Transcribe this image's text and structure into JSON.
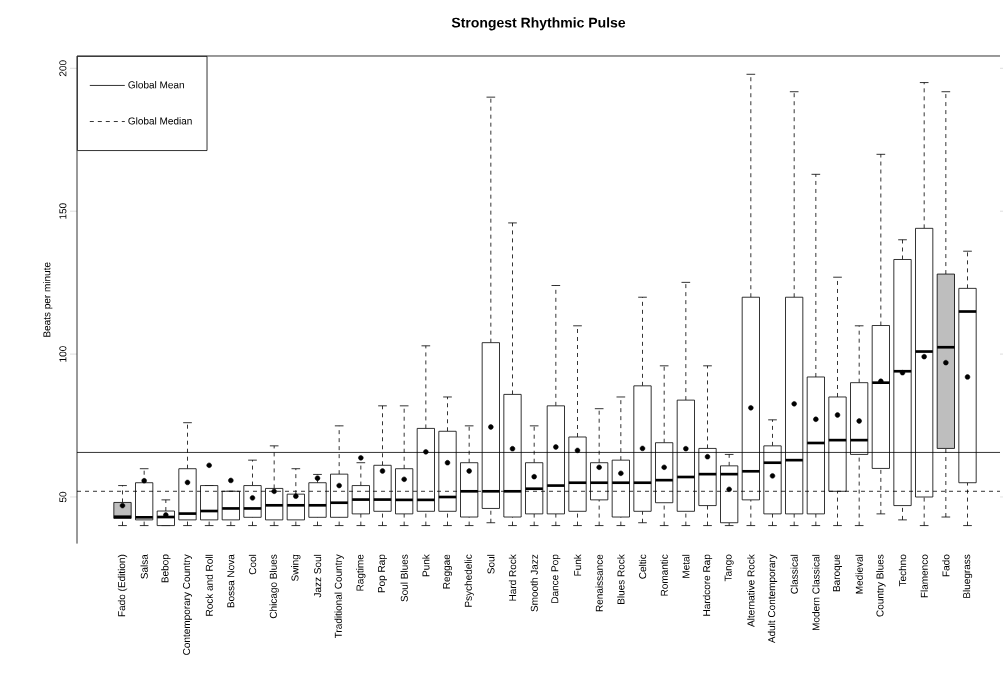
{
  "chart_data": {
    "type": "box",
    "title": "Strongest Rhythmic Pulse",
    "ylabel": "Beats per minute",
    "categories": [
      "Fado (Edition)",
      "Salsa",
      "Bebop",
      "Contemporary Country",
      "Rock and Roll",
      "Bossa Nova",
      "Cool",
      "Chicago Blues",
      "Swing",
      "Jazz Soul",
      "Traditional Country",
      "Ragtime",
      "Pop Rap",
      "Soul Blues",
      "Punk",
      "Reggae",
      "Psychedelic",
      "Soul",
      "Hard Rock",
      "Smooth Jazz",
      "Dance Pop",
      "Funk",
      "Renaissance",
      "Blues Rock",
      "Celtic",
      "Romantic",
      "Metal",
      "Hardcore Rap",
      "Tango",
      "Alternative Rock",
      "Adult Contemporary",
      "Classical",
      "Modern Classical",
      "Baroque",
      "Medieval",
      "Country Blues",
      "Techno",
      "Flamenco",
      "Fado",
      "Bluegrass"
    ],
    "boxes": [
      {
        "low": 40,
        "q1": 42.5,
        "median": 43.1,
        "q3": 48.1,
        "high": 54,
        "mean": 47
      },
      {
        "low": 40,
        "q1": 42,
        "median": 42.9,
        "q3": 55,
        "high": 59.9,
        "mean": 55.7
      },
      {
        "low": 40,
        "q1": 40,
        "median": 43,
        "q3": 45.1,
        "high": 49,
        "mean": 43.7
      },
      {
        "low": 40,
        "q1": 42,
        "median": 44.2,
        "q3": 59.9,
        "high": 76,
        "mean": 55.1
      },
      {
        "low": 40,
        "q1": 42,
        "median": 45.1,
        "q3": 54,
        "high": 54,
        "mean": 61.1
      },
      {
        "low": 40,
        "q1": 42,
        "median": 46,
        "q3": 52,
        "high": 52,
        "mean": 55.8
      },
      {
        "low": 40,
        "q1": 42.9,
        "median": 46,
        "q3": 54,
        "high": 62.9,
        "mean": 49.7
      },
      {
        "low": 40,
        "q1": 42,
        "median": 47.1,
        "q3": 53,
        "high": 67.9,
        "mean": 52
      },
      {
        "low": 40,
        "q1": 42,
        "median": 47.1,
        "q3": 51,
        "high": 59.9,
        "mean": 50.3
      },
      {
        "low": 40,
        "q1": 42.9,
        "median": 47.1,
        "q3": 55,
        "high": 57.9,
        "mean": 56.6
      },
      {
        "low": 40,
        "q1": 42.9,
        "median": 48,
        "q3": 58,
        "high": 74.9,
        "mean": 54
      },
      {
        "low": 40,
        "q1": 44.1,
        "median": 49.1,
        "q3": 54,
        "high": 62,
        "mean": 63.7
      },
      {
        "low": 40,
        "q1": 45,
        "median": 49.1,
        "q3": 61.1,
        "high": 81.9,
        "mean": 59.1
      },
      {
        "low": 40,
        "q1": 44.1,
        "median": 49,
        "q3": 59.9,
        "high": 81.9,
        "mean": 56.2
      },
      {
        "low": 40,
        "q1": 45,
        "median": 49,
        "q3": 74,
        "high": 102.9,
        "mean": 65.8
      },
      {
        "low": 40,
        "q1": 45,
        "median": 50,
        "q3": 73,
        "high": 85,
        "mean": 62
      },
      {
        "low": 40,
        "q1": 43,
        "median": 52,
        "q3": 62,
        "high": 74.9,
        "mean": 59.1
      },
      {
        "low": 41,
        "q1": 46,
        "median": 52,
        "q3": 104,
        "high": 189.9,
        "mean": 74.5
      },
      {
        "low": 40,
        "q1": 43,
        "median": 52,
        "q3": 85.9,
        "high": 145.9,
        "mean": 66.9
      },
      {
        "low": 40,
        "q1": 44.1,
        "median": 52.9,
        "q3": 62,
        "high": 74.9,
        "mean": 57.1
      },
      {
        "low": 40,
        "q1": 44.1,
        "median": 54,
        "q3": 81.9,
        "high": 124,
        "mean": 67.5
      },
      {
        "low": 40,
        "q1": 45,
        "median": 55,
        "q3": 71,
        "high": 109.9,
        "mean": 66.3
      },
      {
        "low": 40,
        "q1": 49,
        "median": 55,
        "q3": 62,
        "high": 80.9,
        "mean": 60.4
      },
      {
        "low": 40,
        "q1": 43,
        "median": 55,
        "q3": 62.9,
        "high": 85,
        "mean": 58.3
      },
      {
        "low": 41,
        "q1": 45,
        "median": 55,
        "q3": 88.9,
        "high": 119.9,
        "mean": 67
      },
      {
        "low": 40,
        "q1": 48,
        "median": 55.9,
        "q3": 69,
        "high": 95.9,
        "mean": 60.4
      },
      {
        "low": 40,
        "q1": 45,
        "median": 57,
        "q3": 83.9,
        "high": 125.1,
        "mean": 66.9
      },
      {
        "low": 40,
        "q1": 47,
        "median": 58,
        "q3": 67,
        "high": 95.9,
        "mean": 64.1
      },
      {
        "low": 40,
        "q1": 41,
        "median": 58,
        "q3": 60.9,
        "high": 64.9,
        "mean": 52.7
      },
      {
        "low": 40,
        "q1": 49,
        "median": 59,
        "q3": 119.9,
        "high": 197.9,
        "mean": 81.2
      },
      {
        "low": 40,
        "q1": 44.1,
        "median": 62,
        "q3": 67.9,
        "high": 77,
        "mean": 57.4
      },
      {
        "low": 40,
        "q1": 44.1,
        "median": 62.9,
        "q3": 119.9,
        "high": 191.8,
        "mean": 82.6
      },
      {
        "low": 40,
        "q1": 44.1,
        "median": 68.9,
        "q3": 92,
        "high": 162.9,
        "mean": 77.2
      },
      {
        "low": 40,
        "q1": 52,
        "median": 69.9,
        "q3": 85,
        "high": 126.9,
        "mean": 78.7
      },
      {
        "low": 40,
        "q1": 64.9,
        "median": 69.9,
        "q3": 90,
        "high": 109.9,
        "mean": 76.6
      },
      {
        "low": 44.1,
        "q1": 60,
        "median": 90,
        "q3": 110,
        "high": 169.9,
        "mean": 90.5
      },
      {
        "low": 42,
        "q1": 47,
        "median": 94,
        "q3": 133.1,
        "high": 140,
        "mean": 93.5
      },
      {
        "low": 40,
        "q1": 50,
        "median": 100.9,
        "q3": 144,
        "high": 195,
        "mean": 99.1
      },
      {
        "low": 43,
        "q1": 67,
        "median": 102.4,
        "q3": 128,
        "high": 191.8,
        "mean": 97
      },
      {
        "low": 40,
        "q1": 55,
        "median": 114.9,
        "q3": 123,
        "high": 136,
        "mean": 92
      }
    ],
    "colors": [
      "#bebebe",
      "#ffffff",
      "#ffffff",
      "#ffffff",
      "#ffffff",
      "#ffffff",
      "#ffffff",
      "#ffffff",
      "#ffffff",
      "#ffffff",
      "#ffffff",
      "#ffffff",
      "#ffffff",
      "#ffffff",
      "#ffffff",
      "#ffffff",
      "#ffffff",
      "#ffffff",
      "#ffffff",
      "#ffffff",
      "#ffffff",
      "#ffffff",
      "#ffffff",
      "#ffffff",
      "#ffffff",
      "#ffffff",
      "#ffffff",
      "#ffffff",
      "#ffffff",
      "#ffffff",
      "#ffffff",
      "#ffffff",
      "#ffffff",
      "#ffffff",
      "#ffffff",
      "#ffffff",
      "#ffffff",
      "#ffffff",
      "#bebebe",
      "#ffffff"
    ],
    "ylim": [
      33.7,
      204.3
    ],
    "yticks": [
      50,
      100,
      150,
      200
    ],
    "ref_lines": [
      {
        "axis": "y",
        "value": 65.6,
        "label": "Global Mean",
        "line_style": "solid"
      },
      {
        "axis": "y",
        "value": 52.0,
        "label": "Global Median",
        "line_style": "dashed"
      }
    ],
    "legend": "top left",
    "grid": false
  }
}
